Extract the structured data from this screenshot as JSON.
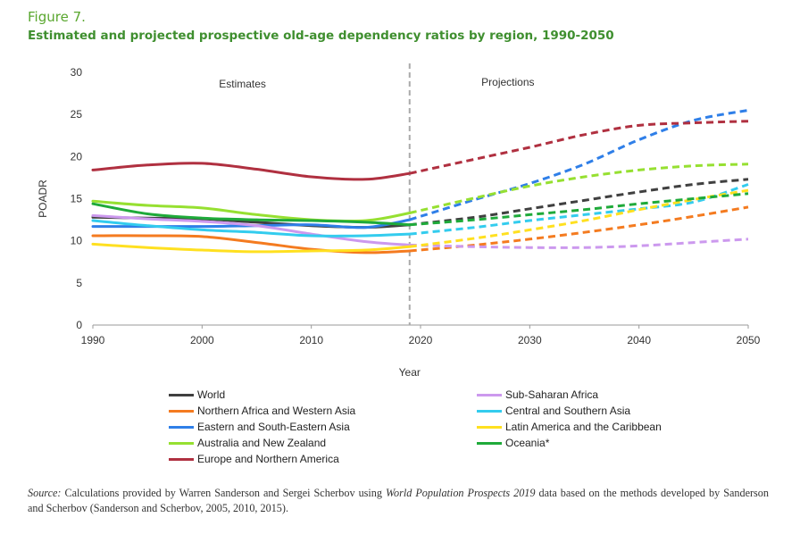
{
  "figure_label": "Figure 7.",
  "title": "Estimated and projected prospective old-age dependency ratios by region, 1990-2050",
  "source": {
    "prefix": "Source:",
    "text1": " Calculations provided by Warren Sanderson and Sergei Scherbov using ",
    "italic": "World Population Prospects 2019",
    "text2": " data based on the methods developed by Sanderson and Scherbov (Sanderson and Scherbov, 2005, 2010, 2015)."
  },
  "chart_data": {
    "type": "line",
    "xlabel": "Year",
    "ylabel": "POADR",
    "xlim": [
      1990,
      2050
    ],
    "ylim": [
      0,
      30
    ],
    "xticks": [
      1990,
      2000,
      2010,
      2020,
      2030,
      2040,
      2050
    ],
    "yticks": [
      0,
      5,
      10,
      15,
      20,
      25,
      30
    ],
    "divider_x": 2019,
    "projection_start": 2019,
    "annotations": [
      "Estimates",
      "Projections"
    ],
    "legend_position": "bottom",
    "grid": false,
    "x": [
      1990,
      1995,
      2000,
      2005,
      2010,
      2015,
      2019,
      2025,
      2030,
      2035,
      2040,
      2045,
      2050
    ],
    "series": [
      {
        "name": "World",
        "color": "#404040",
        "values": [
          12.8,
          12.7,
          12.6,
          12.2,
          11.8,
          11.6,
          11.9,
          12.8,
          13.8,
          14.8,
          15.8,
          16.7,
          17.3
        ]
      },
      {
        "name": "Northern Africa and Western Asia",
        "color": "#f47b20",
        "values": [
          10.6,
          10.6,
          10.5,
          9.8,
          9.0,
          8.6,
          8.8,
          9.5,
          10.2,
          11.0,
          11.9,
          12.9,
          14.0
        ]
      },
      {
        "name": "Eastern and South-Eastern Asia",
        "color": "#2f7fe8",
        "values": [
          11.7,
          11.7,
          11.7,
          11.8,
          11.9,
          11.6,
          12.5,
          14.9,
          16.8,
          19.1,
          22.0,
          24.3,
          25.5
        ]
      },
      {
        "name": "Australia and New Zealand",
        "color": "#96e031",
        "values": [
          14.7,
          14.2,
          13.9,
          13.1,
          12.5,
          12.4,
          13.3,
          15.1,
          16.5,
          17.6,
          18.4,
          18.9,
          19.1
        ]
      },
      {
        "name": "Europe and Northern America",
        "color": "#b03040",
        "values": [
          18.4,
          19.0,
          19.2,
          18.5,
          17.6,
          17.3,
          18.0,
          19.7,
          21.1,
          22.6,
          23.7,
          24.0,
          24.2
        ]
      },
      {
        "name": "Sub-Saharan Africa",
        "color": "#cc99ee",
        "values": [
          13.0,
          12.6,
          12.3,
          11.8,
          10.8,
          9.9,
          9.5,
          9.3,
          9.2,
          9.2,
          9.4,
          9.8,
          10.2
        ]
      },
      {
        "name": "Central and Southern Asia",
        "color": "#33ccee",
        "values": [
          12.4,
          11.8,
          11.3,
          11.0,
          10.6,
          10.6,
          10.8,
          11.6,
          12.4,
          13.1,
          13.8,
          14.6,
          16.7
        ]
      },
      {
        "name": "Latin America and the Caribbean",
        "color": "#ffe020",
        "values": [
          9.6,
          9.2,
          8.9,
          8.7,
          8.8,
          8.9,
          9.3,
          10.3,
          11.3,
          12.4,
          13.7,
          14.9,
          16.0
        ]
      },
      {
        "name": "Oceania*",
        "color": "#1faa3a",
        "values": [
          14.4,
          13.2,
          12.7,
          12.5,
          12.4,
          12.2,
          11.9,
          12.5,
          13.1,
          13.7,
          14.4,
          15.0,
          15.6
        ]
      }
    ]
  }
}
